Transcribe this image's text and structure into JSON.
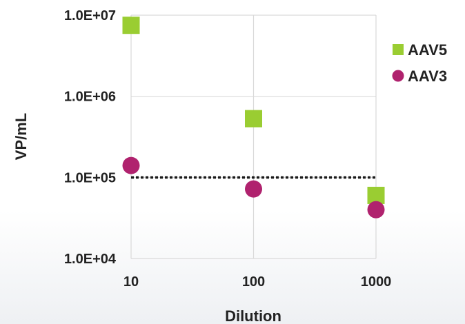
{
  "chart_data": {
    "type": "scatter",
    "title": "",
    "xlabel": "Dilution",
    "ylabel": "VP/mL",
    "x_scale": "log",
    "y_scale": "log",
    "xlim": [
      10,
      1000
    ],
    "ylim": [
      10000,
      10000000
    ],
    "x_ticks": [
      10,
      100,
      1000
    ],
    "x_tick_labels": [
      "10",
      "100",
      "1000"
    ],
    "y_ticks": [
      10000,
      100000,
      1000000,
      10000000
    ],
    "y_tick_labels": [
      "1.0E+04",
      "1.0E+05",
      "1.0E+06",
      "1.0E+07"
    ],
    "grid": true,
    "legend_position": "right",
    "reference_line": {
      "y": 100000,
      "style": "dotted",
      "color": "#1a1a1a"
    },
    "series": [
      {
        "name": "AAV5",
        "marker": "square",
        "color": "#9ACD32",
        "points": [
          {
            "x": 10,
            "y": 7500000
          },
          {
            "x": 100,
            "y": 530000
          },
          {
            "x": 1000,
            "y": 60000
          }
        ]
      },
      {
        "name": "AAV3",
        "marker": "circle",
        "color": "#B0226E",
        "points": [
          {
            "x": 10,
            "y": 140000
          },
          {
            "x": 100,
            "y": 72000
          },
          {
            "x": 1000,
            "y": 40000
          }
        ]
      }
    ]
  }
}
